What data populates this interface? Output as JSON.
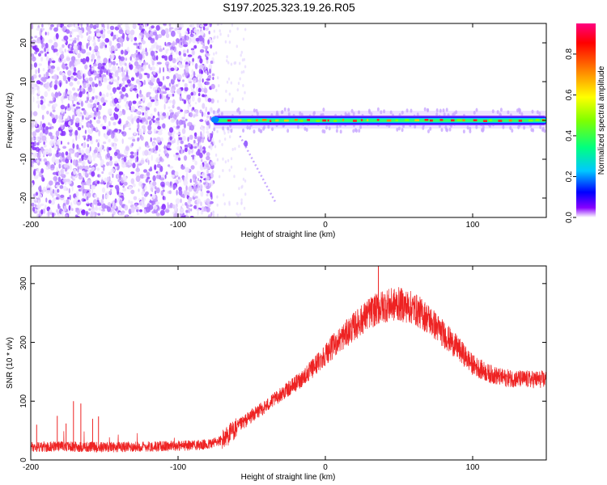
{
  "title": "S197.2025.323.19.26.R05",
  "chart_data": [
    {
      "type": "heatmap",
      "name": "spectrogram",
      "xlabel": "Height of straight line (km)",
      "ylabel": "Frequency (Hz)",
      "xlim": [
        -200,
        150
      ],
      "ylim": [
        -25,
        25
      ],
      "xticks": [
        "-200",
        "-100",
        "0",
        "100"
      ],
      "yticks": [
        "20",
        "10",
        "0",
        "-10",
        "-20"
      ],
      "noise_region_x": [
        -200,
        -76
      ],
      "signal_start_x": -76,
      "signal_band_hz": [
        -2,
        3
      ],
      "streak": {
        "x": [
          -58,
          -34
        ],
        "y": [
          -4,
          -21
        ]
      },
      "colorbar": {
        "label": "Normalized spectral amplitude",
        "range": [
          0,
          0.95
        ],
        "ticks": [
          "0.0",
          "0.2",
          "0.4",
          "0.6",
          "0.8"
        ],
        "colors": [
          "#ffffff",
          "#8800ff",
          "#0000ff",
          "#00c8ff",
          "#00ff80",
          "#80ff00",
          "#ffff00",
          "#ff8000",
          "#ff0000",
          "#ff0080"
        ]
      }
    },
    {
      "type": "line",
      "name": "snr",
      "xlabel": "Height of straight line (km)",
      "ylabel": "SNR (10 * v/v)",
      "xlim": [
        -200,
        150
      ],
      "ylim": [
        0,
        330
      ],
      "xticks": [
        "-200",
        "-100",
        "0",
        "100"
      ],
      "yticks": [
        "0",
        "100",
        "200",
        "300"
      ],
      "color": "#ee2222",
      "trend": {
        "x": [
          -200,
          -180,
          -160,
          -140,
          -120,
          -100,
          -80,
          -70,
          -60,
          -50,
          -40,
          -30,
          -20,
          -10,
          0,
          10,
          20,
          30,
          40,
          50,
          60,
          70,
          80,
          90,
          100,
          110,
          120,
          130,
          140,
          150
        ],
        "y": [
          22,
          23,
          22,
          22,
          23,
          24,
          26,
          34,
          55,
          75,
          92,
          112,
          130,
          152,
          180,
          205,
          228,
          250,
          262,
          265,
          258,
          240,
          215,
          190,
          162,
          148,
          140,
          138,
          137,
          137
        ]
      },
      "spikes": [
        {
          "x": -196,
          "y": 60
        },
        {
          "x": -182,
          "y": 75
        },
        {
          "x": -176,
          "y": 62
        },
        {
          "x": -171,
          "y": 100
        },
        {
          "x": -166,
          "y": 96
        },
        {
          "x": -158,
          "y": 70
        },
        {
          "x": -154,
          "y": 74
        },
        {
          "x": 36,
          "y": 330
        }
      ]
    }
  ]
}
